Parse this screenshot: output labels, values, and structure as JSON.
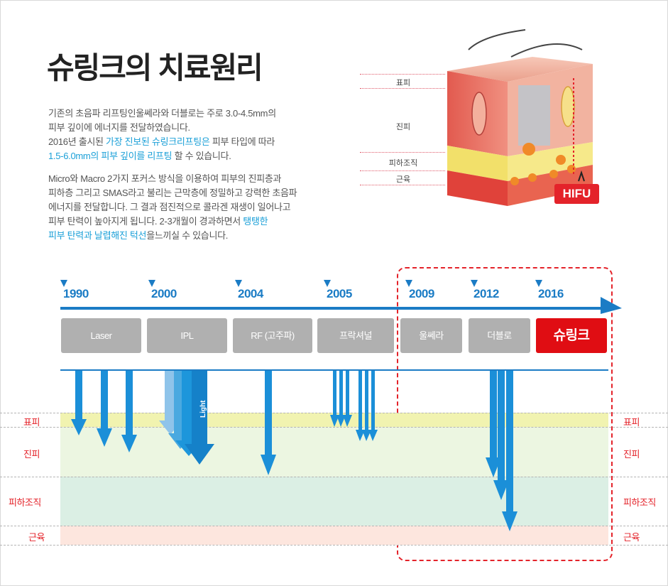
{
  "title": "슈링크의 치료원리",
  "paragraph1": {
    "line1": "기존의 초음파 리프팅인울쎄라와 더블로는 주로 3.0-4.5mm의",
    "line2": "피부 깊이에 에너지를 전달하였습니다.",
    "line3_a": "2016년 출시된 ",
    "line3_b": "가장 진보된 슈링크리프팅은",
    "line3_c": " 피부 타입에 따라",
    "line4_a": "1.5-6.0mm의 피부 깊이를 리프팅",
    "line4_b": " 할 수 있습니다."
  },
  "paragraph2": {
    "line1": "Micro와 Macro 2가지 포커스 방식을 이용하여 피부의 진피층과",
    "line2": "피하층 그리고 SMAS라고 불리는 근막층에 정밀하고 강력한 초음파",
    "line3": "에너지를 전달합니다. 그 결과 점진적으로 콜라겐 재생이 일어나고",
    "line4_a": "피부 탄력이 높아지게 됩니다. 2-3개월이 경과하면서 ",
    "line4_b": "탱탱한",
    "line5_a": "피부 탄력과 날렵해진 턱선",
    "line5_b": "을느끼실 수 있습니다."
  },
  "skin_labels": [
    "표피",
    "진피",
    "피하조직",
    "근육"
  ],
  "hifu_label": "HIFU",
  "years": [
    "1990",
    "2000",
    "2004",
    "2005",
    "2009",
    "2012",
    "2016"
  ],
  "technologies": [
    "Laser",
    "IPL",
    "RF (고주파)",
    "프락셔널",
    "울쎄라",
    "더블로",
    "슈링크"
  ],
  "light_label": "Light",
  "layers": [
    "표피",
    "진피",
    "피하조직",
    "근육"
  ],
  "colors": {
    "accent_blue": "#1b7cc5",
    "highlight": "#1ba0d8",
    "red": "#e4232a",
    "tech_gray": "#b0b0b0"
  }
}
